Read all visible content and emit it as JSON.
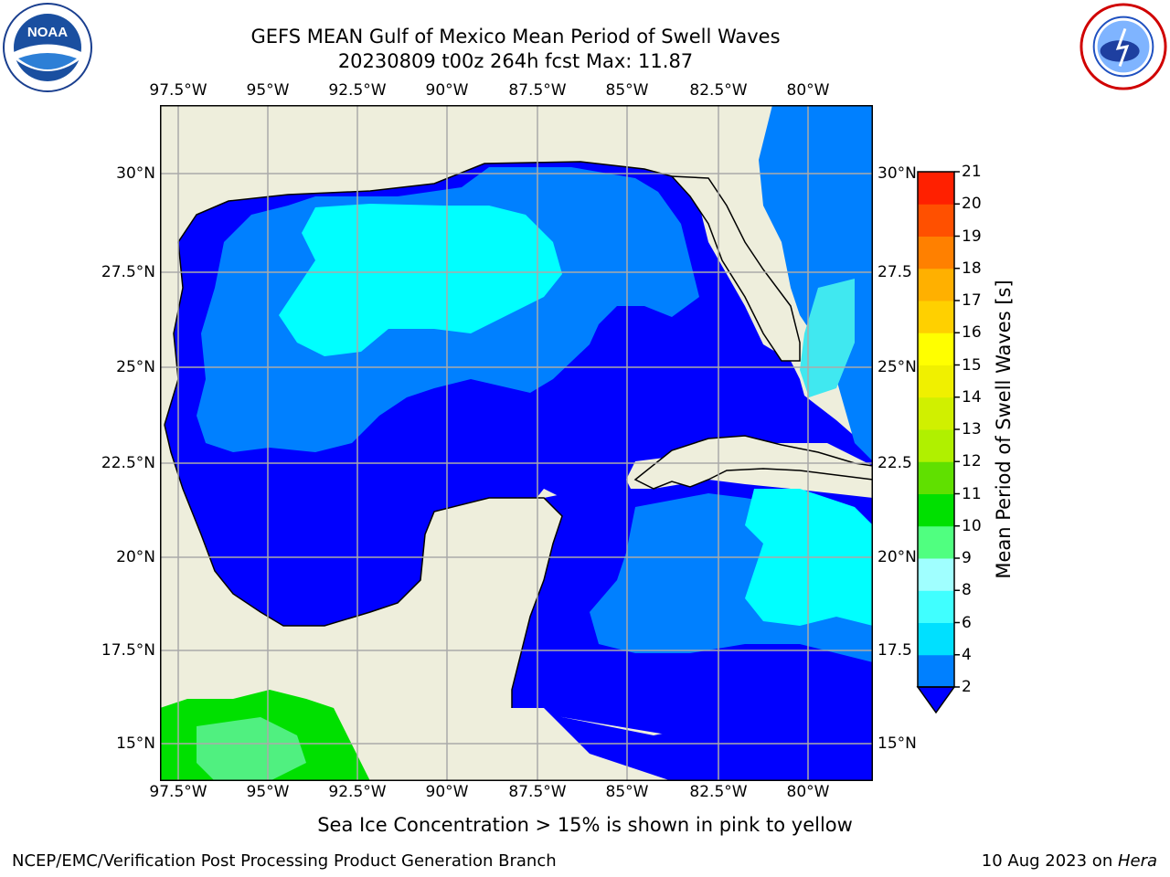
{
  "title_line1": "GEFS MEAN Gulf of Mexico Mean Period of Swell Waves",
  "title_line2": "20230809 t00z 264h fcst   Max: 11.87",
  "logos": {
    "left": "noa-logo",
    "right": "nws-logo"
  },
  "lon_labels": [
    "97.5°W",
    "95°W",
    "92.5°W",
    "90°W",
    "87.5°W",
    "85°W",
    "82.5°W",
    "80°W"
  ],
  "lat_labels_left": [
    "30°N",
    "27.5°N",
    "25°N",
    "22.5°N",
    "20°N",
    "17.5°N",
    "15°N"
  ],
  "lat_labels_right": [
    "30°N",
    "27.5",
    "25°N",
    "22.5",
    "20°N",
    "17.5",
    "15°N"
  ],
  "colorbar": {
    "label": "Mean Period of Swell Waves [s]",
    "ticks": [
      "2",
      "4",
      "6",
      "8",
      "9",
      "10",
      "11",
      "12",
      "13",
      "14",
      "15",
      "16",
      "17",
      "18",
      "19",
      "20",
      "21"
    ],
    "colors": [
      "#0080ff",
      "#00e0ff",
      "#40ffff",
      "#a0ffff",
      "#50ff80",
      "#00e000",
      "#60e000",
      "#b0f000",
      "#d0f000",
      "#f0f000",
      "#ffff00",
      "#ffd000",
      "#ffb000",
      "#ff8000",
      "#ff5000",
      "#ff2000"
    ],
    "extend_color": "#0000ff"
  },
  "map_colors": {
    "land": "#eeeedc",
    "deep": "#0000ff",
    "mid": "#0080ff",
    "light": "#00ffff",
    "pale": "#40e8f0",
    "green": "#00e000",
    "green_light": "#50f080"
  },
  "caption": "Sea Ice Concentration > 15% is shown in pink to yellow",
  "footer": {
    "left": "NCEP/EMC/Verification Post Processing Product Generation Branch",
    "right_date": "10 Aug 2023 on ",
    "right_host": "Hera"
  }
}
